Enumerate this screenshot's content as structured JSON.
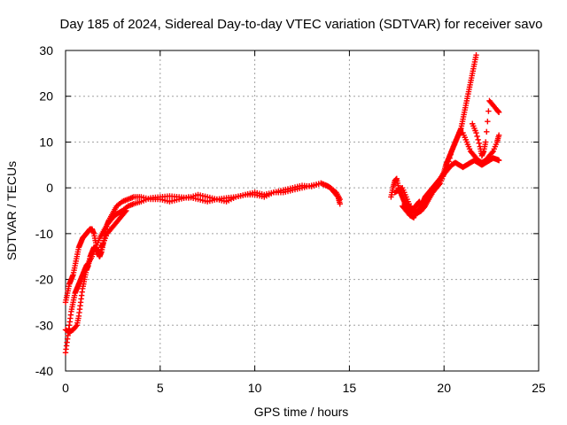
{
  "chart_data": {
    "type": "scatter",
    "title": "Day 185 of 2024, Sidereal Day-to-day VTEC variation (SDTVAR) for receiver savo",
    "xlabel": "GPS time / hours",
    "ylabel": "SDTVAR / TECUs",
    "xlim": [
      0,
      25
    ],
    "ylim": [
      -40,
      30
    ],
    "xticks": [
      0,
      5,
      10,
      15,
      20,
      25
    ],
    "yticks": [
      -40,
      -30,
      -20,
      -10,
      0,
      10,
      20,
      30
    ],
    "grid": true,
    "marker": "plus",
    "color": "#ff0000",
    "series": [
      {
        "name": "arc-1",
        "x": [
          0.0,
          0.1,
          0.2,
          0.3,
          0.4,
          0.5,
          0.6,
          0.7,
          0.8,
          0.9,
          1.0,
          1.1,
          1.2,
          1.4,
          1.6,
          1.8,
          2.0,
          2.2,
          2.4,
          2.6,
          2.8,
          3.0,
          3.3,
          3.6,
          4.0,
          4.5,
          5.0,
          5.5,
          6.0,
          6.5,
          7.0,
          7.5,
          8.0,
          8.5,
          9.0,
          9.5,
          10.0,
          10.5,
          11.0,
          11.5,
          12.0,
          12.5,
          13.0,
          13.5,
          13.8,
          14.0,
          14.2,
          14.4,
          14.5
        ],
        "y": [
          -36,
          -33,
          -30,
          -27,
          -25,
          -23,
          -22,
          -21,
          -20,
          -19,
          -18,
          -17,
          -16.5,
          -15,
          -13,
          -11,
          -9.5,
          -8,
          -7,
          -6,
          -5.5,
          -5,
          -4,
          -3.5,
          -3,
          -2.2,
          -2,
          -1.8,
          -2,
          -2.2,
          -1.5,
          -2,
          -2.5,
          -2.2,
          -2,
          -1.5,
          -1,
          -1.5,
          -1,
          -0.5,
          0,
          0.5,
          0.3,
          1,
          0.5,
          0,
          -1,
          -2,
          -3.5
        ]
      },
      {
        "name": "arc-2",
        "x": [
          0.0,
          0.1,
          0.2,
          0.3,
          0.4,
          0.5,
          0.6,
          0.7,
          0.8,
          0.9,
          1.0,
          1.1,
          1.2,
          1.3,
          1.4,
          1.5,
          1.6,
          1.7,
          1.8,
          1.9,
          2.0,
          2.2,
          2.4,
          2.6,
          2.8,
          3.0,
          3.2
        ],
        "y": [
          -25,
          -23,
          -21,
          -20,
          -19,
          -17,
          -15,
          -13,
          -12,
          -11,
          -10.5,
          -10,
          -9.5,
          -9,
          -9,
          -10,
          -12,
          -14,
          -15,
          -13,
          -12,
          -10,
          -9,
          -8,
          -7,
          -6,
          -5
        ]
      },
      {
        "name": "arc-3",
        "x": [
          0.0,
          0.2,
          0.4,
          0.6,
          0.7,
          0.8,
          0.9,
          1.0,
          1.1,
          1.2,
          1.3,
          1.4,
          1.5,
          1.6,
          1.7,
          1.8,
          1.9,
          2.0,
          2.1,
          2.2,
          2.3,
          2.5,
          2.7,
          3.0,
          3.3,
          3.6,
          4.0,
          4.5,
          5.0,
          5.5,
          6.0,
          6.5,
          7.0,
          7.5,
          8.0,
          8.5,
          9.0,
          9.5,
          10.0,
          10.5,
          11.0,
          11.5,
          12.0,
          12.5,
          13.0,
          13.5,
          14.0,
          14.3,
          14.5
        ],
        "y": [
          -31,
          -31.5,
          -31,
          -30,
          -28,
          -25,
          -22,
          -20,
          -18,
          -17,
          -15,
          -14,
          -13,
          -13,
          -14,
          -15,
          -14,
          -12,
          -10,
          -8,
          -7,
          -5.5,
          -4,
          -3,
          -2.5,
          -2,
          -2,
          -2.5,
          -2.5,
          -3,
          -2.5,
          -2,
          -2.5,
          -3,
          -2.5,
          -3,
          -2,
          -1.5,
          -1.5,
          -2,
          -1,
          -1,
          -0.5,
          0,
          0.5,
          1,
          0,
          -1,
          -2.5
        ]
      },
      {
        "name": "arc-4",
        "x": [
          17.2,
          17.3,
          17.4,
          17.5,
          17.6,
          17.7,
          17.8,
          17.9,
          18.0,
          18.1,
          18.2,
          18.3,
          18.4,
          18.5,
          18.6,
          18.7,
          18.8,
          18.9,
          19.0,
          19.1,
          19.2,
          19.3,
          19.4,
          19.5,
          19.6,
          19.7,
          19.8,
          19.9,
          20.0,
          20.2,
          20.4,
          20.6,
          20.8,
          21.0,
          21.2,
          21.4,
          21.6,
          21.8,
          22.0,
          22.2,
          22.4,
          22.6,
          22.8,
          22.9
        ],
        "y": [
          -2,
          0,
          1.5,
          2,
          0,
          -1,
          -2,
          -3,
          -4,
          -5,
          -6,
          -5,
          -4.5,
          -4,
          -3.5,
          -3,
          -4,
          -3,
          -2,
          -1.5,
          -1,
          -0.5,
          0,
          0.5,
          1,
          1.5,
          2,
          2.5,
          3,
          4,
          5,
          5.5,
          5,
          4.5,
          5,
          5.5,
          6,
          5.5,
          5,
          5.5,
          6,
          6.5,
          6.2,
          6
        ]
      },
      {
        "name": "arc-5",
        "x": [
          17.4,
          17.6,
          17.8,
          18.0,
          18.2,
          18.4,
          18.6,
          18.8,
          19.0,
          19.2,
          19.4,
          19.6,
          19.8,
          20.0,
          20.1,
          20.2,
          20.3,
          20.4,
          20.5,
          20.6,
          20.7,
          20.8,
          20.9,
          21.0,
          21.1,
          21.2,
          21.3,
          21.4,
          21.5,
          21.6,
          21.7
        ],
        "y": [
          -1,
          -0.5,
          0,
          -2,
          -4,
          -5,
          -5.5,
          -5,
          -4,
          -2.5,
          -1,
          0.5,
          2,
          3.5,
          5,
          6,
          7,
          8,
          9,
          10,
          11,
          12,
          13,
          15,
          17,
          19,
          21,
          23,
          25,
          27,
          29
        ]
      },
      {
        "name": "arc-6",
        "x": [
          17.8,
          18.0,
          18.2,
          18.4,
          18.6,
          18.8,
          19.0,
          19.2,
          19.4,
          19.6,
          19.8,
          20.0,
          20.2,
          20.4,
          20.6,
          20.8,
          21.0,
          21.2,
          21.4,
          21.6,
          21.8,
          22.0,
          22.2,
          22.4,
          22.6,
          22.8,
          22.9
        ],
        "y": [
          -4,
          -5,
          -6,
          -6.5,
          -5,
          -4,
          -3,
          -2,
          -1,
          0,
          1,
          3,
          5,
          8,
          10,
          12,
          12,
          10,
          8,
          7,
          6,
          5.5,
          6,
          7,
          8,
          10,
          11.5
        ]
      },
      {
        "name": "arc-7",
        "x": [
          21.5,
          21.7,
          21.9,
          22.0,
          22.1,
          22.2,
          22.4,
          22.6,
          22.8,
          22.9
        ],
        "y": [
          14,
          12,
          9,
          7,
          8,
          10,
          19,
          18,
          17,
          16.5
        ]
      }
    ]
  }
}
